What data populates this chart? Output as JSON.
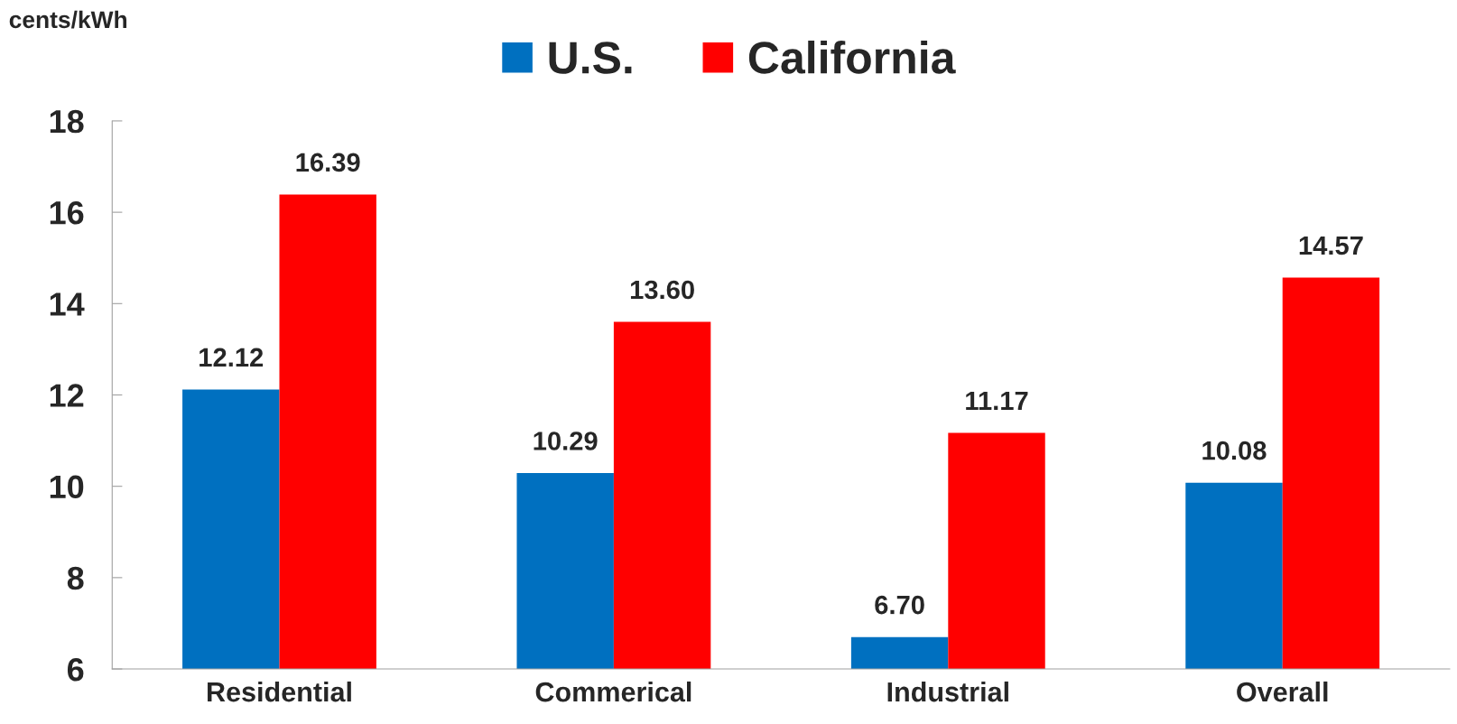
{
  "chart_data": {
    "type": "bar",
    "ylabel": "cents/kWh",
    "categories": [
      "Residential",
      "Commerical",
      "Industrial",
      "Overall"
    ],
    "series": [
      {
        "name": "U.S.",
        "color": "#0070c0",
        "values": [
          12.12,
          10.29,
          6.7,
          10.08
        ],
        "value_labels": [
          "12.12",
          "10.29",
          "6.70",
          "10.08"
        ]
      },
      {
        "name": "California",
        "color": "#ff0000",
        "values": [
          16.39,
          13.6,
          11.17,
          14.57
        ],
        "value_labels": [
          "16.39",
          "13.60",
          "11.17",
          "14.57"
        ]
      }
    ],
    "ylim": [
      6,
      18
    ],
    "yticks": [
      6,
      8,
      10,
      12,
      14,
      16,
      18
    ],
    "grid": false,
    "legend": "top"
  }
}
